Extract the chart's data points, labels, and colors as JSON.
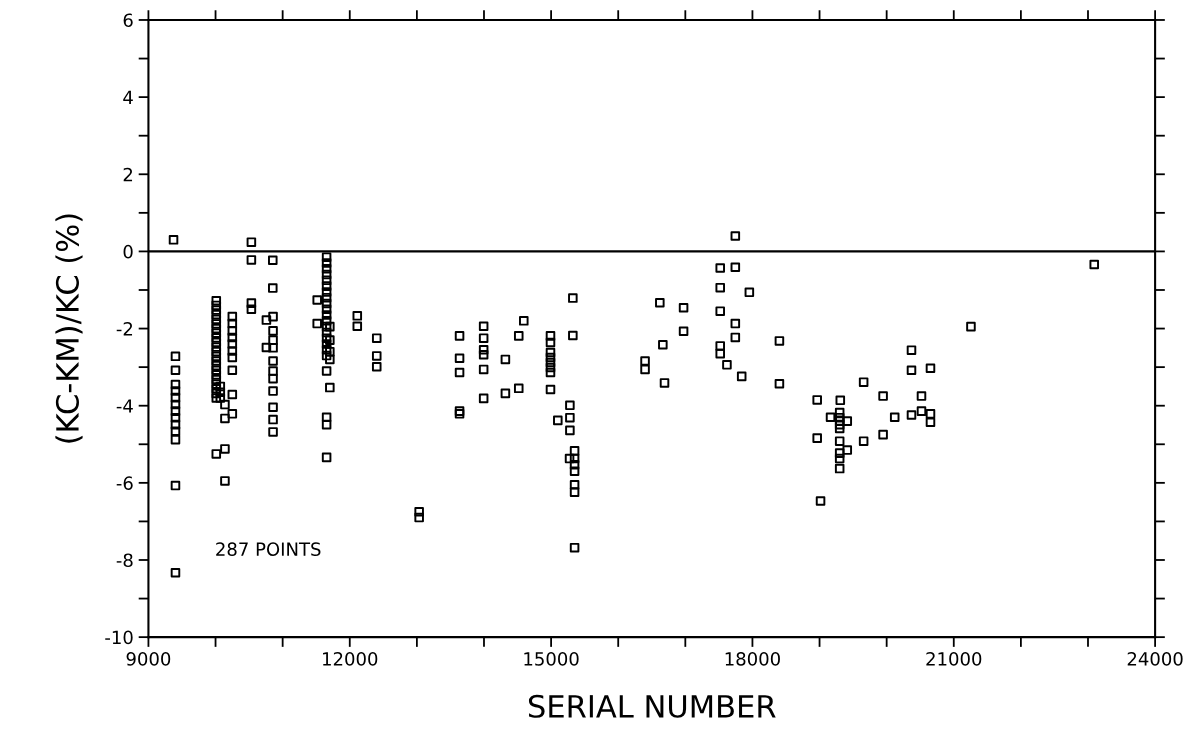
{
  "chart_data": {
    "type": "scatter",
    "xlabel": "SERIAL NUMBER",
    "ylabel": "(KC-KM)/KC (%)",
    "annotations": [
      "287 POINTS"
    ],
    "xlim": [
      9000,
      24000
    ],
    "xticks": [
      9000,
      {
        "value": 10000,
        "label": null
      },
      {
        "value": 11000,
        "label": null
      },
      12000,
      {
        "value": 13000,
        "label": null
      },
      {
        "value": 14000,
        "label": null
      },
      15000,
      {
        "value": 16000,
        "label": null
      },
      {
        "value": 17000,
        "label": null
      },
      18000,
      {
        "value": 19000,
        "label": null
      },
      {
        "value": 20000,
        "label": null
      },
      21000,
      {
        "value": 22000,
        "label": null
      },
      {
        "value": 23000,
        "label": null
      },
      24000
    ],
    "ylim": [
      -10,
      6
    ],
    "yticks": [
      -10,
      {
        "value": -9,
        "label": null
      },
      -8,
      {
        "value": -7,
        "label": null
      },
      -6,
      {
        "value": -5,
        "label": null
      },
      -4,
      {
        "value": -3,
        "label": null
      },
      -2,
      {
        "value": -1,
        "label": null
      },
      0,
      {
        "value": 1,
        "label": null
      },
      2,
      {
        "value": 3,
        "label": null
      },
      4,
      {
        "value": 5,
        "label": null
      },
      6
    ],
    "ref_lines": [
      {
        "axis": "y",
        "value": 0,
        "color": "#000000"
      }
    ],
    "grid": false,
    "marker": "square",
    "series": [
      {
        "color": "#000000",
        "x": [
          9374,
          9403,
          9403,
          9403,
          9403,
          9403,
          9403,
          9403,
          9403,
          9403,
          9403,
          9403,
          9403,
          9403,
          10534,
          10534,
          10534,
          10534,
          10853,
          10853,
          10011,
          10011,
          10011,
          10011,
          10011,
          10011,
          10011,
          10011,
          10011,
          10011,
          10011,
          10011,
          10011,
          10011,
          10011,
          10011,
          10011,
          10011,
          10011,
          10011,
          10011,
          10011,
          10011,
          10071,
          10071,
          10071,
          10140,
          10140,
          10140,
          10140,
          10250,
          10250,
          10250,
          10250,
          10250,
          10250,
          10250,
          10250,
          10250,
          10250,
          10758,
          10758,
          10857,
          10857,
          10857,
          10857,
          10857,
          10857,
          10857,
          10857,
          10857,
          10857,
          10857,
          11515,
          11515,
          11655,
          11655,
          11655,
          11655,
          11655,
          11655,
          11655,
          11655,
          11655,
          11655,
          11655,
          11655,
          11655,
          11655,
          11655,
          11655,
          11655,
          11655,
          11655,
          11655,
          11655,
          11655,
          11703,
          11703,
          11703,
          11703,
          11703,
          12112,
          12112,
          12402,
          12402,
          12402,
          13034,
          13034,
          13636,
          13636,
          13636,
          13636,
          13636,
          13995,
          13995,
          13995,
          13995,
          13995,
          13995,
          14319,
          14319,
          14518,
          14518,
          14593,
          14991,
          14991,
          14991,
          14991,
          14991,
          14991,
          14991,
          14991,
          15100,
          15280,
          15280,
          15280,
          15324,
          15324,
          15350,
          15350,
          15350,
          15350,
          15350,
          15350,
          15350,
          15275,
          16400,
          16400,
          16620,
          16665,
          16690,
          16974,
          16974,
          17520,
          17520,
          17520,
          17520,
          17520,
          17620,
          17745,
          17745,
          17745,
          17745,
          17840,
          17954,
          18402,
          18402,
          18965,
          18965,
          19015,
          19309,
          19300,
          19300,
          19300,
          19300,
          19300,
          19164,
          19413,
          19300,
          19300,
          19300,
          19300,
          19413,
          19657,
          19657,
          19947,
          19947,
          20120,
          20370,
          20370,
          20370,
          20519,
          20519,
          20653,
          20653,
          20653,
          21256,
          23093
        ],
        "values": [
          0.3,
          -2.72,
          -3.08,
          -3.45,
          -3.62,
          -3.79,
          -3.97,
          -4.14,
          -4.31,
          -4.49,
          -4.66,
          -4.88,
          -6.07,
          -8.33,
          0.24,
          -0.22,
          -1.34,
          -1.5,
          -0.23,
          -0.95,
          -1.28,
          -1.4,
          -1.52,
          -1.64,
          -1.76,
          -1.88,
          -2.0,
          -2.12,
          -2.24,
          -2.36,
          -2.48,
          -2.6,
          -2.72,
          -2.84,
          -2.96,
          -3.08,
          -3.2,
          -3.32,
          -3.44,
          -3.56,
          -3.68,
          -3.8,
          -5.25,
          -3.5,
          -3.65,
          -3.8,
          -3.97,
          -4.33,
          -5.12,
          -5.95,
          -1.69,
          -1.87,
          -2.06,
          -2.23,
          -2.4,
          -2.58,
          -2.75,
          -3.08,
          -3.71,
          -4.21,
          -1.78,
          -2.49,
          -1.69,
          -2.06,
          -2.3,
          -2.5,
          -2.84,
          -3.1,
          -3.3,
          -3.62,
          -4.04,
          -4.36,
          -4.68,
          -1.26,
          -1.87,
          -0.15,
          -0.3,
          -0.45,
          -0.6,
          -0.75,
          -0.9,
          -1.05,
          -1.2,
          -1.35,
          -1.5,
          -1.65,
          -1.8,
          -1.95,
          -2.1,
          -2.25,
          -2.4,
          -2.55,
          -2.7,
          -3.1,
          -4.3,
          -4.49,
          -5.34,
          -1.95,
          -2.3,
          -2.6,
          -2.8,
          -3.53,
          -1.67,
          -1.94,
          -2.25,
          -2.71,
          -2.99,
          -6.75,
          -6.9,
          -2.19,
          -2.77,
          -3.14,
          -4.14,
          -4.21,
          -1.94,
          -2.25,
          -2.55,
          -2.68,
          -3.06,
          -3.81,
          -2.8,
          -3.68,
          -2.19,
          -3.55,
          -1.8,
          -2.19,
          -2.36,
          -2.62,
          -2.75,
          -2.88,
          -3.01,
          -3.14,
          -3.58,
          -4.38,
          -3.99,
          -4.31,
          -4.64,
          -1.21,
          -2.18,
          -5.17,
          -5.37,
          -5.53,
          -5.7,
          -6.05,
          -6.24,
          -7.68,
          -5.37,
          -2.84,
          -3.06,
          -1.33,
          -2.42,
          -3.41,
          -1.46,
          -2.07,
          -0.43,
          -0.94,
          -1.55,
          -2.45,
          -2.65,
          -2.94,
          0.4,
          -0.41,
          -1.87,
          -2.23,
          -3.24,
          -1.06,
          -2.32,
          -3.43,
          -3.85,
          -4.84,
          -6.47,
          -3.86,
          -4.18,
          -4.31,
          -4.4,
          -4.49,
          -4.59,
          -4.3,
          -4.4,
          -4.92,
          -5.23,
          -5.37,
          -5.63,
          -5.15,
          -3.39,
          -4.92,
          -3.75,
          -4.75,
          -4.3,
          -2.56,
          -3.08,
          -4.24,
          -3.75,
          -4.14,
          -3.03,
          -4.21,
          -4.43,
          -1.95,
          -0.34
        ]
      }
    ]
  }
}
